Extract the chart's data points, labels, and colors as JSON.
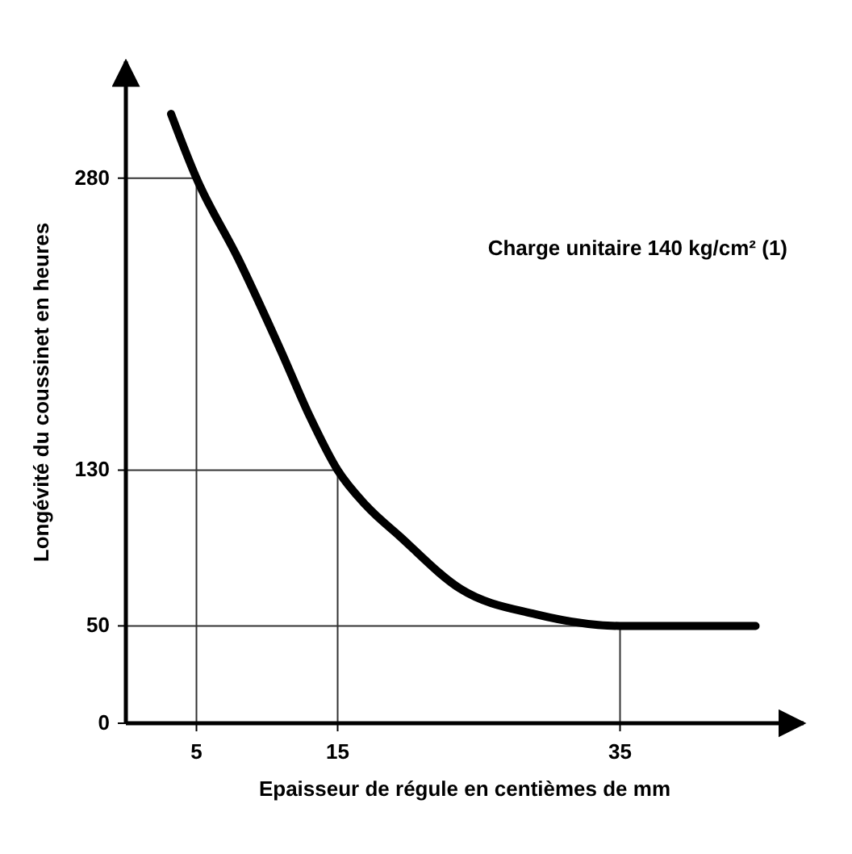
{
  "chart_data": {
    "type": "line",
    "xlabel": "Epaisseur de régule en centièmes de mm",
    "ylabel": "Longévité du coussinet en heures",
    "annotations": [
      "Charge unitaire 140 kg/cm² (1)"
    ],
    "xlim": [
      0,
      48
    ],
    "ylim": [
      0,
      340
    ],
    "xticks": [
      5,
      15,
      35
    ],
    "yticks": [
      0,
      50,
      130,
      280
    ],
    "series": [
      {
        "color": "#000000",
        "x": [
          3.2,
          5,
          8,
          11,
          13,
          15,
          17,
          19.4,
          23.7,
          29,
          35,
          44.6
        ],
        "values": [
          313,
          280,
          238,
          191,
          158,
          130,
          112,
          96,
          69,
          56,
          50,
          50
        ]
      }
    ],
    "ref_lines": [
      {
        "axis": "x",
        "value": 5
      },
      {
        "axis": "x",
        "value": 15
      },
      {
        "axis": "x",
        "value": 35
      },
      {
        "axis": "y",
        "value": 280
      },
      {
        "axis": "y",
        "value": 130
      },
      {
        "axis": "y",
        "value": 50
      }
    ],
    "marker": "none",
    "line_style": "solid",
    "grid": false
  }
}
